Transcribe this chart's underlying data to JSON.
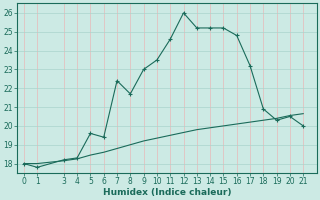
{
  "xlabel": "Humidex (Indice chaleur)",
  "bg_color": "#cceae4",
  "grid_color_h": "#aad4cc",
  "grid_color_v": "#e8b8b8",
  "line_color": "#1a6b5a",
  "xlim": [
    -0.5,
    22
  ],
  "ylim": [
    17.5,
    26.5
  ],
  "yticks": [
    18,
    19,
    20,
    21,
    22,
    23,
    24,
    25,
    26
  ],
  "xticks": [
    0,
    1,
    3,
    4,
    5,
    6,
    7,
    8,
    9,
    10,
    11,
    12,
    13,
    14,
    15,
    16,
    17,
    18,
    19,
    20,
    21
  ],
  "curve1_x": [
    0,
    1,
    3,
    4,
    5,
    6,
    7,
    8,
    9,
    10,
    11,
    12,
    13,
    14,
    15,
    16,
    17,
    18,
    19,
    20,
    21
  ],
  "curve1_y": [
    18.0,
    17.8,
    18.2,
    18.3,
    19.6,
    19.4,
    22.4,
    21.7,
    23.0,
    23.5,
    24.6,
    26.0,
    25.2,
    25.2,
    25.2,
    24.8,
    23.2,
    20.9,
    20.3,
    20.5,
    20.0
  ],
  "curve2_x": [
    0,
    1,
    3,
    4,
    5,
    6,
    7,
    8,
    9,
    10,
    11,
    12,
    13,
    14,
    15,
    16,
    17,
    18,
    19,
    20,
    21
  ],
  "curve2_y": [
    18.0,
    18.0,
    18.15,
    18.25,
    18.45,
    18.6,
    18.8,
    19.0,
    19.2,
    19.35,
    19.5,
    19.65,
    19.8,
    19.9,
    20.0,
    20.1,
    20.2,
    20.3,
    20.4,
    20.55,
    20.65
  ]
}
